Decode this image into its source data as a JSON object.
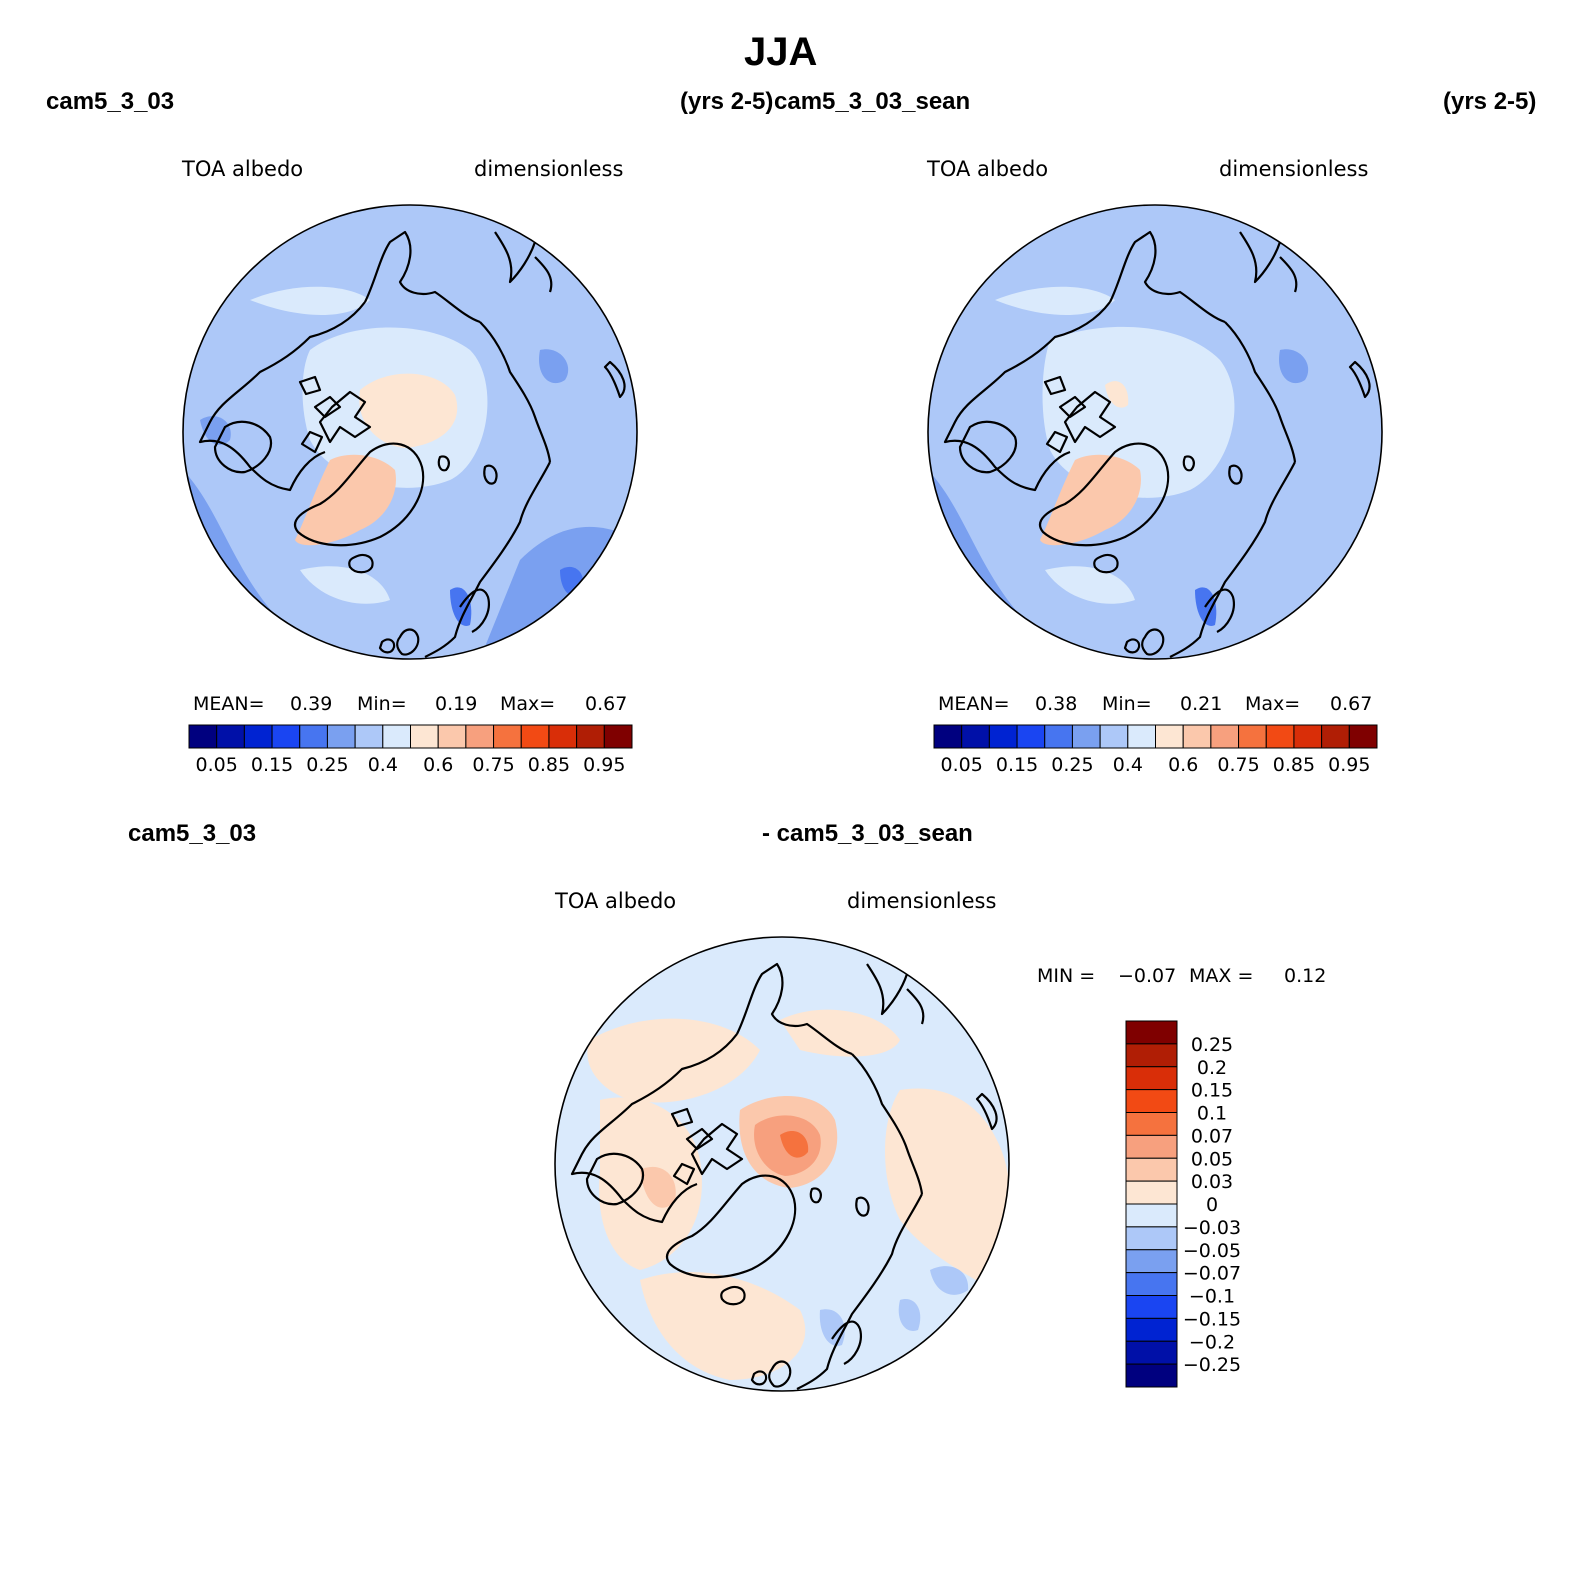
{
  "title": "JJA",
  "colors": {
    "scale": [
      "#00007f",
      "#0010a8",
      "#0023d2",
      "#1a45f2",
      "#4775f0",
      "#7aa0f0",
      "#adc8f8",
      "#daeafc",
      "#fde6d3",
      "#fbc8ac",
      "#f7a07e",
      "#f5723e",
      "#f24a14",
      "#d92e08",
      "#b01e05",
      "#7f0000"
    ],
    "land": "#000000",
    "background": "#ffffff"
  },
  "panels": [
    {
      "case_name": "cam5_3_03",
      "years": "(yrs 2-5)",
      "field": "TOA albedo",
      "units": "dimensionless",
      "mean_label": "MEAN=",
      "mean": "0.39",
      "min_label": "Min=",
      "min": "0.19",
      "max_label": "Max=",
      "max": "0.67",
      "colorbar_labels": [
        "0.05",
        "0.15",
        "0.25",
        "0.4",
        "0.6",
        "0.75",
        "0.85",
        "0.95"
      ]
    },
    {
      "case_name": "cam5_3_03_sean",
      "years": "(yrs 2-5)",
      "field": "TOA albedo",
      "units": "dimensionless",
      "mean_label": "MEAN=",
      "mean": "0.38",
      "min_label": "Min=",
      "min": "0.21",
      "max_label": "Max=",
      "max": "0.67",
      "colorbar_labels": [
        "0.05",
        "0.15",
        "0.25",
        "0.4",
        "0.6",
        "0.75",
        "0.85",
        "0.95"
      ]
    }
  ],
  "diff": {
    "left": "cam5_3_03",
    "right": "- cam5_3_03_sean",
    "field": "TOA albedo",
    "units": "dimensionless",
    "min_label": "MIN =",
    "min": "−0.07",
    "max_label": "MAX =",
    "max": "0.12",
    "colorbar_labels": [
      "0.25",
      "0.2",
      "0.15",
      "0.1",
      "0.07",
      "0.05",
      "0.03",
      "0",
      "−0.03",
      "−0.05",
      "−0.07",
      "−0.1",
      "−0.15",
      "−0.2",
      "−0.25"
    ]
  }
}
